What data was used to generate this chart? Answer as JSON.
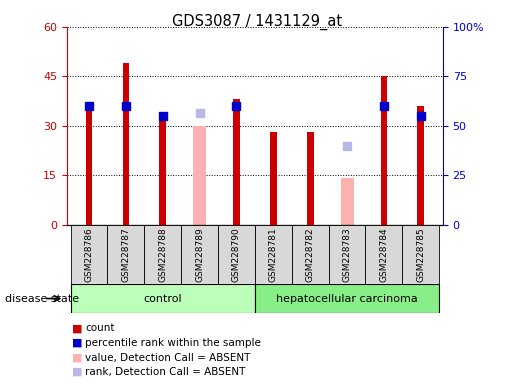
{
  "title": "GDS3087 / 1431129_at",
  "samples": [
    "GSM228786",
    "GSM228787",
    "GSM228788",
    "GSM228789",
    "GSM228790",
    "GSM228781",
    "GSM228782",
    "GSM228783",
    "GSM228784",
    "GSM228785"
  ],
  "n_control": 5,
  "count_values": [
    36,
    49,
    33,
    null,
    38,
    28,
    28,
    null,
    45,
    36
  ],
  "rank_values": [
    36,
    36,
    33,
    null,
    36,
    null,
    null,
    null,
    36,
    33
  ],
  "absent_value": [
    null,
    null,
    null,
    30,
    null,
    null,
    null,
    14,
    null,
    null
  ],
  "absent_rank": [
    null,
    null,
    null,
    34,
    null,
    null,
    null,
    24,
    null,
    null
  ],
  "count_color": "#cc0000",
  "rank_color": "#0000cc",
  "absent_value_color": "#ffb0b0",
  "absent_rank_color": "#b8b8e8",
  "ylim_left": [
    0,
    60
  ],
  "ylim_right": [
    0,
    100
  ],
  "yticks_left": [
    0,
    15,
    30,
    45,
    60
  ],
  "yticks_right": [
    0,
    25,
    50,
    75,
    100
  ],
  "ytick_labels_left": [
    "0",
    "15",
    "30",
    "45",
    "60"
  ],
  "ytick_labels_right": [
    "0",
    "25",
    "50",
    "75",
    "100%"
  ],
  "red_bar_width": 0.18,
  "pink_bar_width": 0.35,
  "square_size": 6,
  "control_color": "#bbffbb",
  "cancer_color": "#88ee88",
  "gray_color": "#d8d8d8",
  "disease_label": "disease state",
  "legend_items": [
    {
      "label": "count",
      "color": "#cc0000"
    },
    {
      "label": "percentile rank within the sample",
      "color": "#0000cc"
    },
    {
      "label": "value, Detection Call = ABSENT",
      "color": "#ffb0b0"
    },
    {
      "label": "rank, Detection Call = ABSENT",
      "color": "#b8b8e8"
    }
  ]
}
